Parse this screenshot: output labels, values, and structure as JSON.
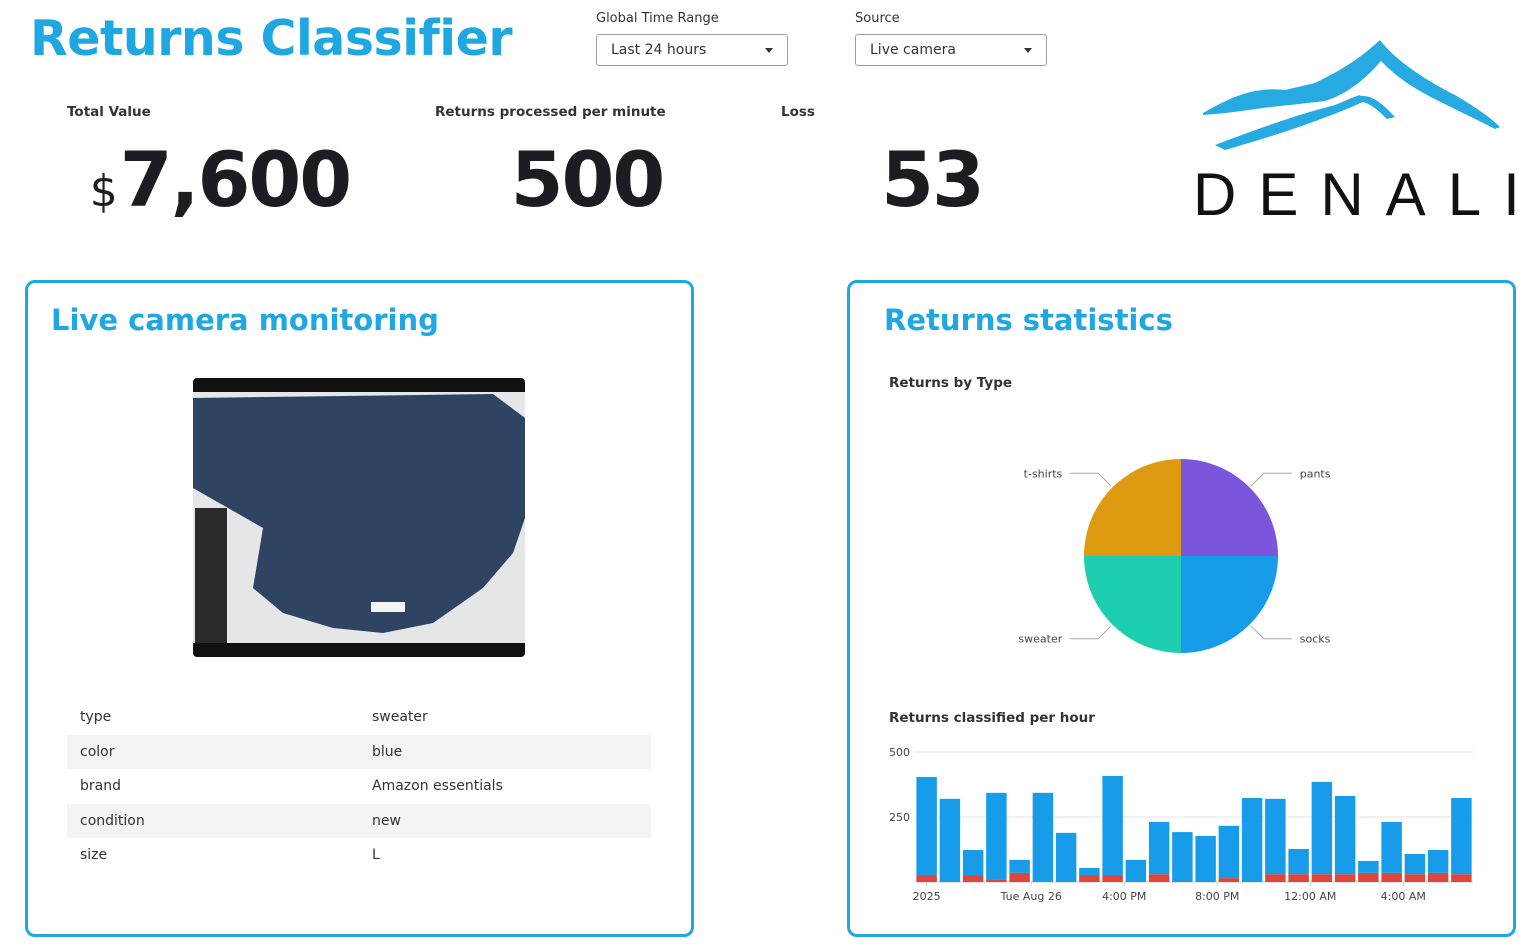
{
  "header": {
    "title": "Returns Classifier"
  },
  "filters": [
    {
      "label": "Global Time Range",
      "value": "Last 24 hours"
    },
    {
      "label": "Source",
      "value": "Live camera"
    }
  ],
  "kpis": [
    {
      "label": "Total Value",
      "prefix": "$",
      "value": "7,600"
    },
    {
      "label": "Returns processed per minute",
      "value": "500"
    },
    {
      "label": "Loss",
      "value": "53"
    }
  ],
  "logo": {
    "text": "DENALI"
  },
  "camera_panel": {
    "title": "Live camera monitoring",
    "table": {
      "rows": [
        [
          "type",
          "sweater"
        ],
        [
          "color",
          "blue"
        ],
        [
          "brand",
          "Amazon essentials"
        ],
        [
          "condition",
          "new"
        ],
        [
          "size",
          "L"
        ]
      ]
    }
  },
  "stats_panel": {
    "title": "Returns statistics"
  },
  "chart_data": [
    {
      "type": "pie",
      "title": "Returns by Type",
      "categories": [
        "pants",
        "socks",
        "sweater",
        "t-shirts"
      ],
      "values": [
        25,
        25,
        25,
        25
      ],
      "colors": [
        "#7b55db",
        "#169ce9",
        "#1dcfb0",
        "#de9a10"
      ]
    },
    {
      "type": "bar",
      "title": "Returns classified per hour",
      "stacked": true,
      "grid": true,
      "categories": [
        "2025",
        null,
        null,
        null,
        "Tue Aug 26",
        null,
        null,
        null,
        "4:00 PM",
        null,
        null,
        null,
        "8:00 PM",
        null,
        null,
        null,
        "12:00 AM",
        null,
        null,
        null,
        "4:00 AM",
        null,
        null,
        null
      ],
      "series": [
        {
          "color": "#e0453b",
          "values": [
            25,
            0,
            25,
            10,
            35,
            0,
            0,
            25,
            25,
            0,
            30,
            0,
            0,
            15,
            0,
            30,
            30,
            30,
            30,
            35,
            35,
            30,
            35,
            30
          ]
        },
        {
          "color": "#169ce9",
          "values": [
            379,
            320,
            98,
            333,
            50,
            343,
            189,
            29,
            383,
            85,
            201,
            192,
            177,
            201,
            323,
            290,
            97,
            355,
            301,
            46,
            196,
            78,
            88,
            293
          ]
        }
      ],
      "ylim": [
        0,
        500
      ],
      "yticks": [
        250,
        500
      ]
    }
  ]
}
